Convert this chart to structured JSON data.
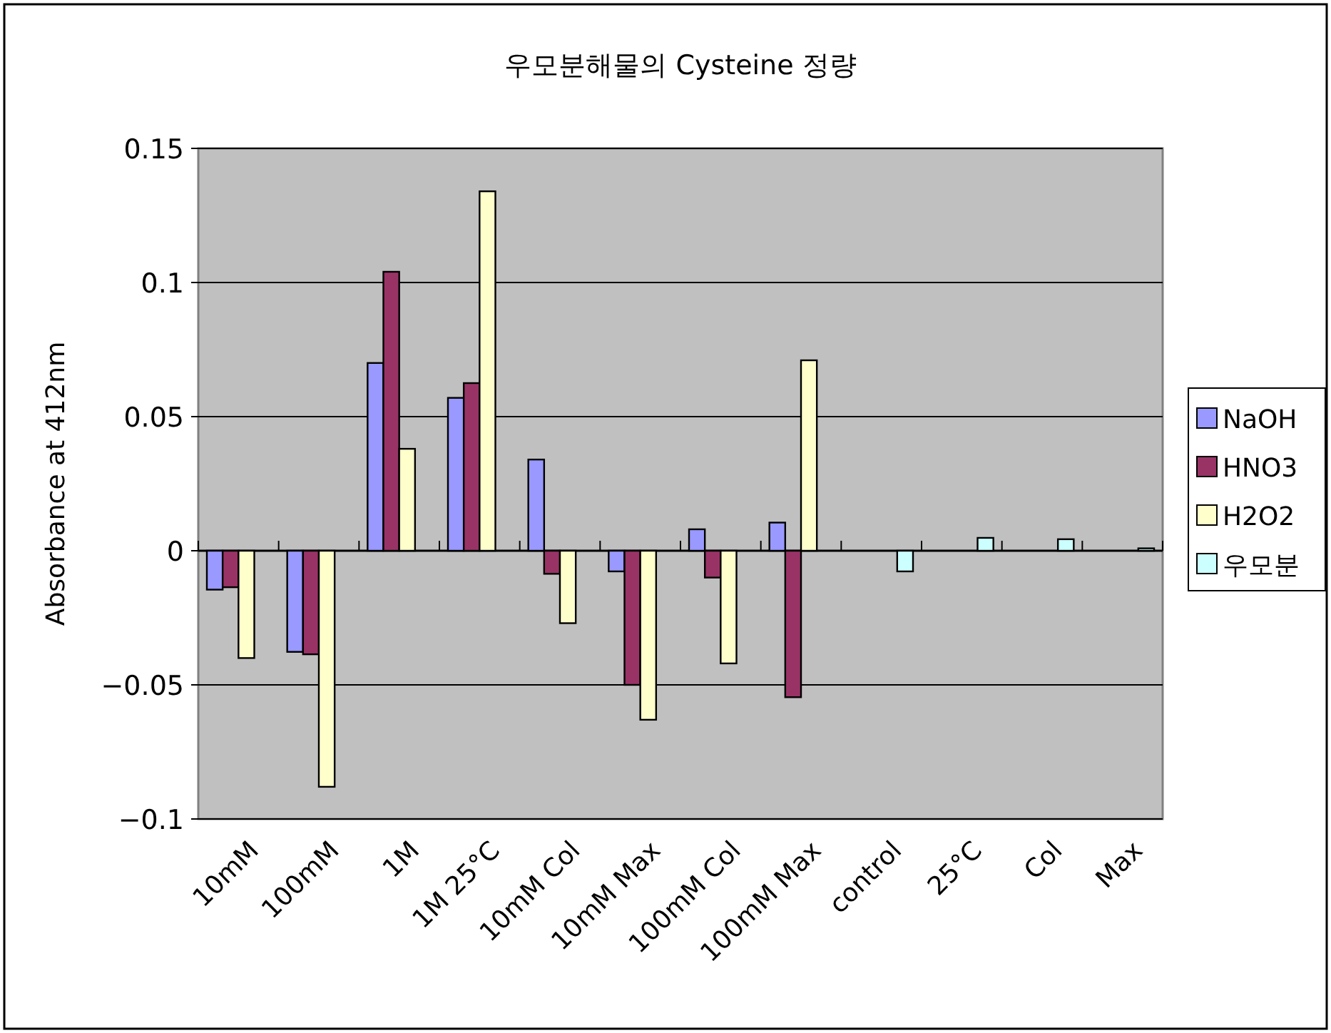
{
  "chart_data": {
    "type": "bar",
    "title": "우모분해물의 Cysteine 정량",
    "ylabel": "Absorbance at 412nm",
    "categories": [
      "10mM",
      "100mM",
      "1M",
      "1M 25°C",
      "10mM Col",
      "10mM Max",
      "100mM Col",
      "100mM Max",
      "control",
      "25°C",
      "Col",
      "Max"
    ],
    "series": [
      {
        "name": "NaOH",
        "color": "#9999ff",
        "values": [
          -0.0145,
          -0.0377,
          0.07,
          0.057,
          0.034,
          -0.0077,
          0.008,
          0.0105,
          null,
          null,
          null,
          null
        ]
      },
      {
        "name": "HNO3",
        "color": "#993366",
        "values": [
          -0.0136,
          -0.0386,
          0.104,
          0.0625,
          -0.0086,
          -0.05,
          -0.01,
          -0.0546,
          null,
          null,
          null,
          null
        ]
      },
      {
        "name": "H2O2",
        "color": "#ffffcc",
        "values": [
          -0.04,
          -0.088,
          0.038,
          0.134,
          -0.027,
          -0.063,
          -0.042,
          0.071,
          null,
          null,
          null,
          null
        ]
      },
      {
        "name": "우모분",
        "color": "#ccffff",
        "values": [
          null,
          null,
          null,
          null,
          null,
          null,
          null,
          null,
          -0.0077,
          0.0048,
          0.0043,
          0.0009
        ]
      }
    ],
    "ylim": [
      -0.1,
      0.15
    ],
    "yticks": [
      {
        "value": -0.1,
        "label": "−0.1"
      },
      {
        "value": -0.05,
        "label": "−0.05"
      },
      0,
      0.05,
      0.1,
      0.15
    ],
    "grid": "y",
    "legend": "right"
  }
}
